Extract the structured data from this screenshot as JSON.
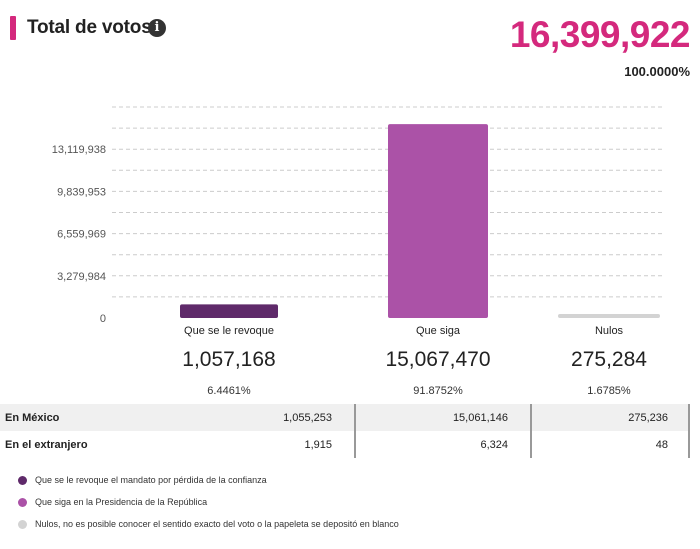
{
  "header": {
    "title": "Total de votos",
    "info_icon": "info-icon",
    "total": "16,399,922",
    "total_pct": "100.0000%",
    "accent_color": "#d4297d"
  },
  "chart_data": {
    "type": "bar",
    "categories": [
      "Que se le revoque",
      "Que siga",
      "Nulos"
    ],
    "values": [
      1057168,
      15067470,
      275284
    ],
    "value_labels": [
      "1,057,168",
      "15,067,470",
      "275,284"
    ],
    "percent_labels": [
      "6.4461%",
      "91.8752%",
      "1.6785%"
    ],
    "colors": [
      "#5f2a6a",
      "#ab52a7",
      "#d3d3d3"
    ],
    "y_ticks": [
      0,
      3279984,
      6559969,
      9839953,
      13119938
    ],
    "y_tick_labels": [
      "0",
      "3,279,984",
      "6,559,969",
      "9,839,953",
      "13,119,938"
    ],
    "ylim": [
      0,
      16399922
    ],
    "grid": true,
    "title": "",
    "xlabel": "",
    "ylabel": ""
  },
  "breakdown": {
    "rows": [
      {
        "label": "En México",
        "values": [
          "1,055,253",
          "15,061,146",
          "275,236"
        ]
      },
      {
        "label": "En el extranjero",
        "values": [
          "1,915",
          "6,324",
          "48"
        ]
      }
    ]
  },
  "legend": [
    {
      "color": "#5f2a6a",
      "text": "Que se le revoque el mandato por pérdida de la confianza"
    },
    {
      "color": "#ab52a7",
      "text": "Que siga en la Presidencia de la República"
    },
    {
      "color": "#d3d3d3",
      "text": "Nulos, no es posible conocer el sentido exacto del voto o la papeleta se depositó en blanco"
    }
  ]
}
